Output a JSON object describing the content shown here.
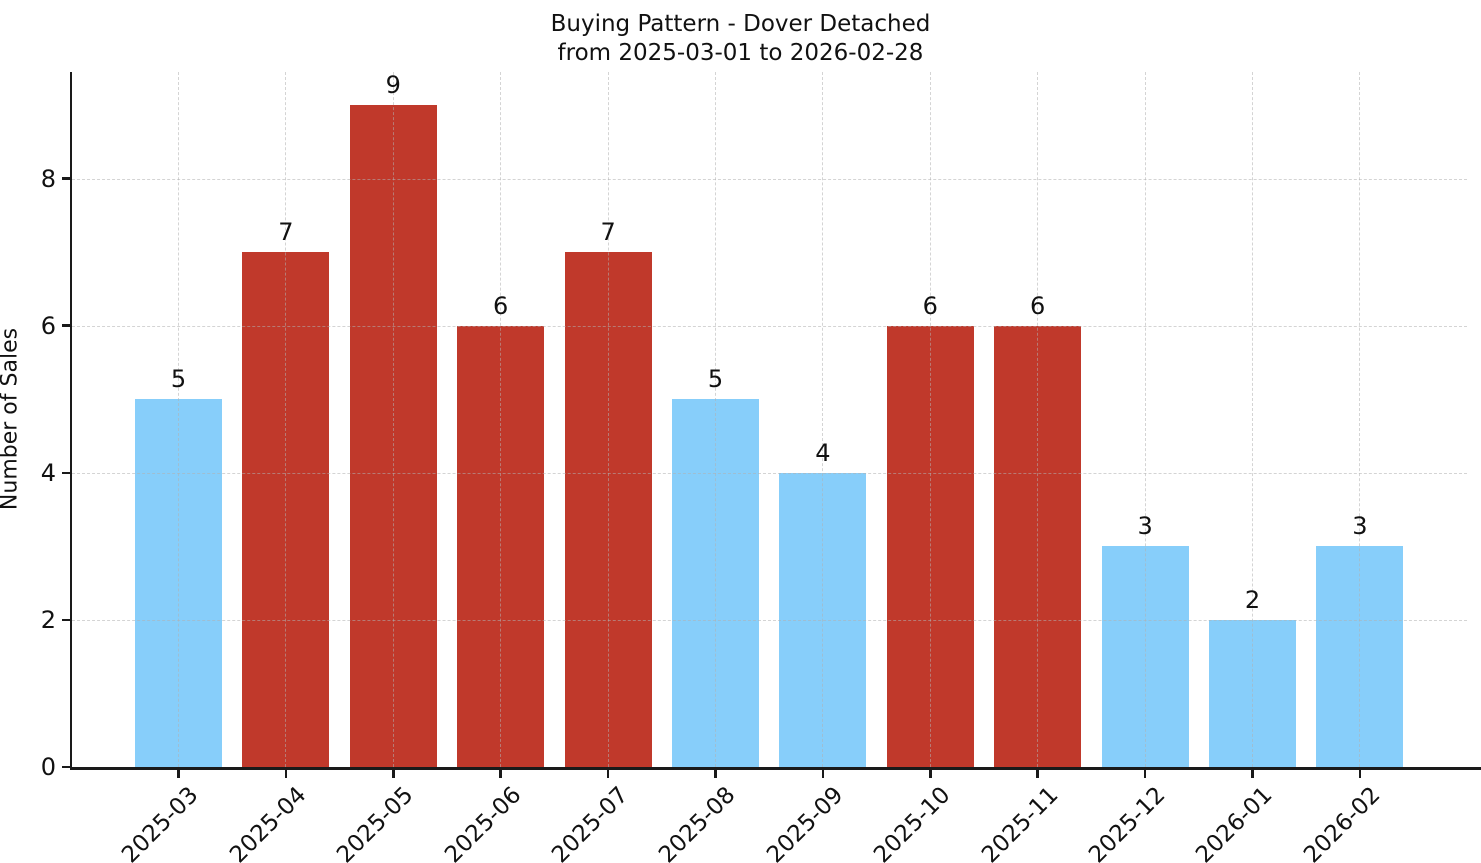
{
  "chart_data": {
    "type": "bar",
    "title": "Buying Pattern - Dover Detached",
    "subtitle": "from 2025-03-01 to 2026-02-28",
    "xlabel": "",
    "ylabel": "Number of Sales",
    "categories": [
      "2025-03",
      "2025-04",
      "2025-05",
      "2025-06",
      "2025-07",
      "2025-08",
      "2025-09",
      "2025-10",
      "2025-11",
      "2025-12",
      "2026-01",
      "2026-02"
    ],
    "values": [
      5,
      7,
      9,
      6,
      7,
      5,
      4,
      6,
      6,
      3,
      2,
      3
    ],
    "bar_colors": [
      "#87CEFA",
      "#C0392B",
      "#C0392B",
      "#C0392B",
      "#C0392B",
      "#87CEFA",
      "#87CEFA",
      "#C0392B",
      "#C0392B",
      "#87CEFA",
      "#87CEFA",
      "#87CEFA"
    ],
    "colors": {
      "low_month": "#87CEFA",
      "high_month": "#C0392B",
      "axis": "#1a1a1a",
      "grid": "#b0b0b0",
      "text": "#111111"
    },
    "value_labels": [
      5,
      7,
      9,
      6,
      7,
      5,
      4,
      6,
      6,
      3,
      2,
      3
    ],
    "yticks": [
      0,
      2,
      4,
      6,
      8
    ],
    "ylim": [
      0,
      9.45
    ],
    "grid": "dashed-both-axes",
    "legend": "none",
    "x_tick_rotation_deg": 45
  }
}
